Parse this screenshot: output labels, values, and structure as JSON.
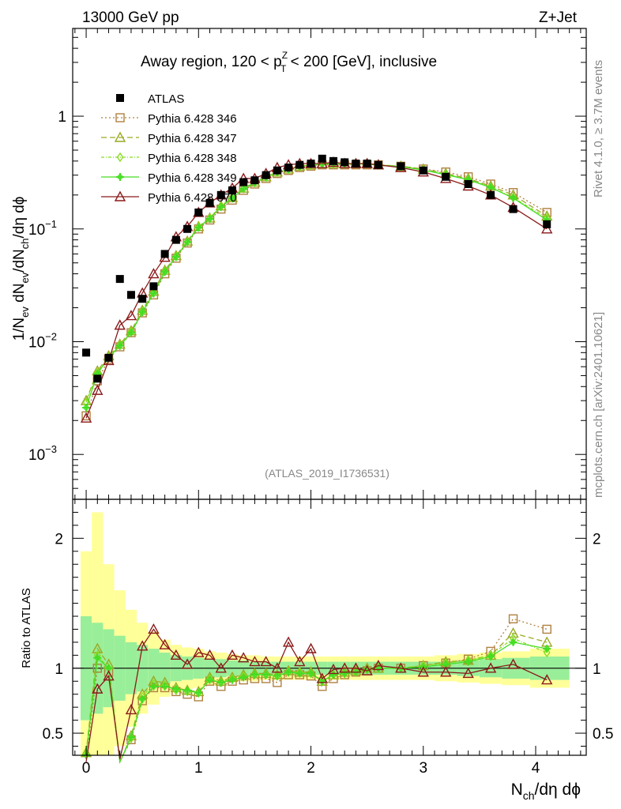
{
  "header": {
    "left": "13000 GeV pp",
    "right": "Z+Jet"
  },
  "side_labels": {
    "rivet": "Rivet 4.1.0, ≥ 3.7M events",
    "mcplots": "mcplots.cern.ch [arXiv:2401.10621]"
  },
  "analysis_tag": "(ATLAS_2019_I1736531)",
  "chart_data": [
    {
      "type": "line",
      "role": "main",
      "title_parts": {
        "pre": "Away region, 120 < p",
        "sup": "Z",
        "sub": "T",
        "post": " < 200 [GeV], inclusive"
      },
      "ylabel": "1/N_ev dN_ev/dN_ch/dη dϕ",
      "xlabel": "N_ch/dη dϕ",
      "yscale": "log",
      "ylim": [
        0.0004,
        6
      ],
      "xlim": [
        -0.12,
        4.45
      ],
      "x_ticks": [
        0,
        1,
        2,
        3,
        4
      ],
      "y_tick_labels": [
        "10⁻³",
        "10⁻²",
        "10⁻¹",
        "1"
      ],
      "x": [
        0.0,
        0.1,
        0.2,
        0.3,
        0.4,
        0.5,
        0.6,
        0.7,
        0.8,
        0.9,
        1.0,
        1.1,
        1.2,
        1.3,
        1.4,
        1.5,
        1.6,
        1.7,
        1.8,
        1.9,
        2.0,
        2.1,
        2.2,
        2.3,
        2.4,
        2.5,
        2.6,
        2.8,
        3.0,
        3.2,
        3.4,
        3.6,
        3.8,
        4.1
      ],
      "series": [
        {
          "name": "ATLAS",
          "style": "data",
          "color": "#000000",
          "values": [
            0.008,
            0.0047,
            0.0072,
            0.036,
            0.026,
            0.024,
            0.031,
            0.06,
            0.08,
            0.1,
            0.14,
            0.17,
            0.2,
            0.22,
            0.26,
            0.27,
            0.3,
            0.33,
            0.35,
            0.37,
            0.38,
            0.42,
            0.4,
            0.39,
            0.38,
            0.38,
            0.37,
            0.36,
            0.33,
            0.29,
            0.25,
            0.2,
            0.15,
            0.11
          ]
        },
        {
          "name": "Pythia 6.428 346",
          "style": "square",
          "dash": "2,3",
          "color": "#b08040",
          "values": [
            0.0022,
            0.0045,
            0.007,
            0.009,
            0.012,
            0.018,
            0.026,
            0.04,
            0.055,
            0.075,
            0.1,
            0.12,
            0.15,
            0.18,
            0.22,
            0.25,
            0.28,
            0.31,
            0.33,
            0.35,
            0.36,
            0.37,
            0.37,
            0.37,
            0.37,
            0.37,
            0.37,
            0.36,
            0.34,
            0.32,
            0.29,
            0.25,
            0.21,
            0.14
          ]
        },
        {
          "name": "Pythia 6.428 347",
          "style": "triangle",
          "dash": "7,4",
          "color": "#9aaa22",
          "values": [
            0.003,
            0.0055,
            0.0075,
            0.0095,
            0.0125,
            0.019,
            0.028,
            0.043,
            0.058,
            0.078,
            0.105,
            0.125,
            0.16,
            0.19,
            0.23,
            0.26,
            0.29,
            0.32,
            0.34,
            0.36,
            0.37,
            0.38,
            0.38,
            0.38,
            0.38,
            0.38,
            0.37,
            0.36,
            0.34,
            0.31,
            0.28,
            0.24,
            0.2,
            0.13
          ]
        },
        {
          "name": "Pythia 6.428 348",
          "style": "diamond",
          "dash": "4,2,1,2",
          "color": "#88dd22",
          "values": [
            0.0029,
            0.0053,
            0.0073,
            0.0093,
            0.0122,
            0.0185,
            0.027,
            0.042,
            0.057,
            0.077,
            0.104,
            0.124,
            0.158,
            0.188,
            0.228,
            0.258,
            0.288,
            0.318,
            0.338,
            0.358,
            0.368,
            0.378,
            0.378,
            0.378,
            0.378,
            0.378,
            0.368,
            0.358,
            0.335,
            0.305,
            0.275,
            0.235,
            0.19,
            0.125
          ]
        },
        {
          "name": "Pythia 6.428 349",
          "style": "plus",
          "dash": "",
          "color": "#44dd22",
          "values": [
            0.0026,
            0.0052,
            0.0072,
            0.0092,
            0.012,
            0.0183,
            0.0268,
            0.0415,
            0.0565,
            0.0765,
            0.103,
            0.123,
            0.157,
            0.187,
            0.227,
            0.257,
            0.287,
            0.317,
            0.337,
            0.357,
            0.367,
            0.377,
            0.377,
            0.377,
            0.377,
            0.377,
            0.367,
            0.357,
            0.333,
            0.303,
            0.273,
            0.233,
            0.188,
            0.12
          ]
        },
        {
          "name": "Pythia 6.428 370",
          "style": "triangle",
          "dash": "",
          "color": "#8b1a1a",
          "values": [
            0.0021,
            0.0037,
            0.0068,
            0.014,
            0.017,
            0.027,
            0.04,
            0.056,
            0.085,
            0.105,
            0.14,
            0.17,
            0.2,
            0.23,
            0.28,
            0.28,
            0.31,
            0.35,
            0.37,
            0.38,
            0.38,
            0.38,
            0.39,
            0.38,
            0.38,
            0.38,
            0.37,
            0.35,
            0.32,
            0.28,
            0.24,
            0.2,
            0.155,
            0.1
          ]
        }
      ]
    },
    {
      "type": "line",
      "role": "ratio",
      "ylabel": "Ratio to ATLAS",
      "ylim": [
        0.33,
        2.3
      ],
      "y_ticks": [
        0.5,
        1,
        2
      ],
      "y_tick_labels": [
        "0.5",
        "1",
        "2"
      ],
      "band_x_edges": [
        -0.05,
        0.05,
        0.15,
        0.25,
        0.35,
        0.45,
        0.55,
        0.65,
        0.75,
        0.85,
        0.95,
        1.05,
        1.15,
        1.25,
        1.35,
        1.45,
        1.55,
        1.65,
        1.75,
        1.85,
        1.95,
        2.05,
        2.15,
        2.25,
        2.35,
        2.45,
        2.55,
        2.7,
        2.9,
        3.1,
        3.3,
        3.5,
        3.7,
        3.95,
        4.3
      ],
      "band_green": [
        0.4,
        0.35,
        0.3,
        0.25,
        0.2,
        0.18,
        0.15,
        0.12,
        0.1,
        0.09,
        0.08,
        0.07,
        0.07,
        0.06,
        0.06,
        0.05,
        0.05,
        0.05,
        0.05,
        0.05,
        0.05,
        0.05,
        0.05,
        0.05,
        0.05,
        0.05,
        0.05,
        0.05,
        0.05,
        0.05,
        0.06,
        0.07,
        0.08,
        0.09
      ],
      "band_yellow": [
        0.9,
        1.2,
        0.8,
        0.6,
        0.45,
        0.35,
        0.28,
        0.22,
        0.18,
        0.16,
        0.15,
        0.13,
        0.12,
        0.11,
        0.1,
        0.1,
        0.09,
        0.09,
        0.09,
        0.09,
        0.09,
        0.09,
        0.09,
        0.09,
        0.09,
        0.09,
        0.09,
        0.09,
        0.09,
        0.1,
        0.11,
        0.12,
        0.13,
        0.15
      ],
      "series": [
        {
          "name": "Pythia 6.428 346",
          "values": [
            0.3,
            1.0,
            0.97,
            0.25,
            0.45,
            0.75,
            0.85,
            0.85,
            0.82,
            0.8,
            0.78,
            0.9,
            0.86,
            0.9,
            0.91,
            0.92,
            0.92,
            0.89,
            0.95,
            0.95,
            0.94,
            0.86,
            0.92,
            0.95,
            0.97,
            0.98,
            1.0,
            1.0,
            1.02,
            1.04,
            1.07,
            1.13,
            1.38,
            1.3
          ]
        },
        {
          "name": "Pythia 6.428 347",
          "values": [
            0.35,
            1.15,
            1.03,
            0.27,
            0.48,
            0.8,
            0.9,
            0.89,
            0.85,
            0.83,
            0.82,
            0.93,
            0.9,
            0.93,
            0.95,
            0.96,
            0.96,
            0.95,
            0.98,
            0.97,
            0.97,
            0.9,
            0.95,
            0.97,
            0.98,
            1.0,
            1.0,
            1.0,
            1.02,
            1.05,
            1.06,
            1.1,
            1.27,
            1.2
          ]
        },
        {
          "name": "Pythia 6.428 348",
          "values": [
            0.34,
            1.1,
            1.0,
            0.26,
            0.46,
            0.78,
            0.88,
            0.87,
            0.83,
            0.82,
            0.81,
            0.92,
            0.89,
            0.92,
            0.94,
            0.95,
            0.95,
            0.94,
            0.97,
            0.97,
            0.96,
            0.9,
            0.95,
            0.96,
            0.97,
            0.99,
            1.0,
            1.0,
            1.02,
            1.04,
            1.06,
            1.1,
            1.23,
            1.12
          ]
        },
        {
          "name": "Pythia 6.428 349",
          "values": [
            0.33,
            1.08,
            1.0,
            0.26,
            0.47,
            0.76,
            0.86,
            0.86,
            0.84,
            0.83,
            0.81,
            0.91,
            0.89,
            0.91,
            0.93,
            0.95,
            0.95,
            0.94,
            0.97,
            0.96,
            0.96,
            0.9,
            0.95,
            0.96,
            0.97,
            0.99,
            1.0,
            1.0,
            1.01,
            1.03,
            1.05,
            1.09,
            1.2,
            1.15
          ]
        },
        {
          "name": "Pythia 6.428 370",
          "values": [
            0.26,
            0.84,
            0.94,
            0.3,
            0.68,
            1.17,
            1.3,
            1.18,
            1.1,
            1.03,
            1.12,
            1.1,
            1.0,
            1.1,
            1.08,
            1.05,
            1.05,
            1.0,
            1.2,
            1.05,
            1.15,
            0.92,
            0.99,
            1.0,
            1.0,
            0.98,
            1.02,
            1.0,
            0.97,
            0.97,
            0.96,
            1.0,
            1.03,
            0.91
          ]
        }
      ]
    }
  ]
}
